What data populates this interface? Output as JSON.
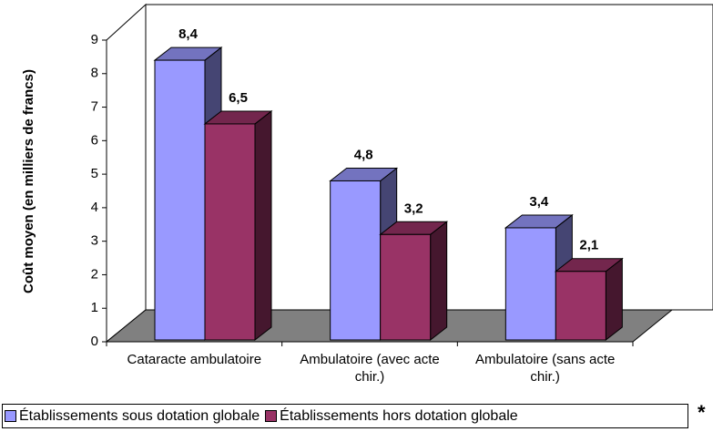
{
  "chart_data": {
    "type": "bar3d",
    "y_label": "Coût moyen (en milliers de francs)",
    "categories": [
      "Cataracte ambulatoire",
      "Ambulatoire (avec acte chir.)",
      "Ambulatoire (sans acte chir.)"
    ],
    "series": [
      {
        "name": "Établissements sous dotation globale",
        "color": "#9999ff",
        "values": [
          8.4,
          4.8,
          3.4
        ],
        "value_labels": [
          "8,4",
          "4,8",
          "3,4"
        ]
      },
      {
        "name": "Établissements hors dotation globale",
        "color": "#993366",
        "values": [
          6.5,
          3.2,
          2.1
        ],
        "value_labels": [
          "6,5",
          "3,2",
          "2,1"
        ]
      }
    ],
    "ylim": [
      0,
      9
    ],
    "yticks": [
      0,
      1,
      2,
      3,
      4,
      5,
      6,
      7,
      8,
      9
    ],
    "footnote_marker": "*"
  }
}
